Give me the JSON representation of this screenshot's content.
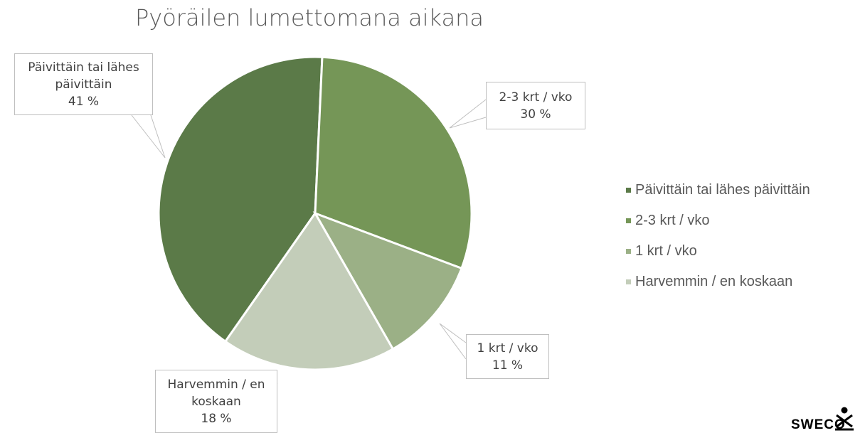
{
  "chart_data": {
    "type": "pie",
    "title": "Pyöräilen lumettomana aikana",
    "categories": [
      "Päivittäin tai lähes päivittäin",
      "2-3 krt / vko",
      "1 krt / vko",
      "Harvemmin / en koskaan"
    ],
    "values": [
      41,
      30,
      11,
      18
    ],
    "value_labels": [
      "41 %",
      "30 %",
      "11 %",
      "18 %"
    ],
    "colors": [
      "#5b7a48",
      "#759657",
      "#9bb086",
      "#c3cdb9"
    ],
    "legend": "right"
  },
  "logo": "SWECO"
}
